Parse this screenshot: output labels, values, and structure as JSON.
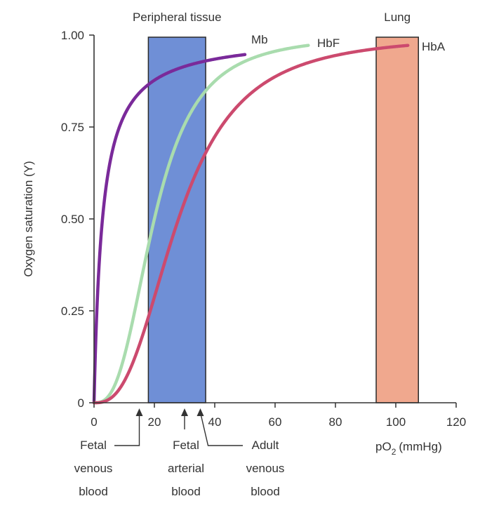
{
  "chart_data": {
    "type": "line",
    "title": "",
    "xlabel": "pO2 (mmHg)",
    "xlabel_main": "pO",
    "xlabel_sub": "2",
    "xlabel_units": "(mmHg)",
    "ylabel": "Oxygen saturation (Y)",
    "xlim": [
      0,
      120
    ],
    "ylim": [
      0,
      1.0
    ],
    "x_ticks": [
      0,
      20,
      40,
      60,
      80,
      100,
      120
    ],
    "x_tick_labels": [
      "0",
      "20",
      "40",
      "60",
      "80",
      "100",
      "120"
    ],
    "y_ticks": [
      0,
      0.25,
      0.5,
      0.75,
      1.0
    ],
    "y_tick_labels": [
      "0",
      "0.25",
      "0.50",
      "0.75",
      "1.00"
    ],
    "grid": false,
    "regions": [
      {
        "label": "Peripheral tissue",
        "x_range": [
          18,
          37
        ],
        "color": "#6f8fd6"
      },
      {
        "label": "Lung",
        "x_range": [
          93.5,
          107.5
        ],
        "color": "#f0a88e"
      }
    ],
    "series": [
      {
        "name": "Mb",
        "color": "#7a2a9a",
        "p50": 2.8,
        "n": 1.0,
        "x_end": 50,
        "x": [
          0,
          2,
          4,
          6,
          10,
          15,
          20,
          30,
          40,
          50
        ],
        "values": [
          0.0,
          0.42,
          0.59,
          0.68,
          0.78,
          0.84,
          0.88,
          0.91,
          0.94,
          0.95
        ]
      },
      {
        "name": "HbF",
        "color": "#a9dcae",
        "p50": 20,
        "n": 2.8,
        "x_end": 71,
        "x": [
          0,
          10,
          15,
          20,
          25,
          30,
          35,
          40,
          50,
          60,
          71
        ],
        "values": [
          0.0,
          0.13,
          0.31,
          0.5,
          0.65,
          0.76,
          0.83,
          0.87,
          0.93,
          0.95,
          0.97
        ]
      },
      {
        "name": "HbA",
        "color": "#cc4a6e",
        "p50": 28,
        "n": 2.7,
        "x_end": 104,
        "x": [
          0,
          10,
          20,
          25,
          30,
          35,
          40,
          50,
          60,
          80,
          104
        ],
        "values": [
          0.0,
          0.06,
          0.29,
          0.42,
          0.55,
          0.67,
          0.76,
          0.85,
          0.9,
          0.95,
          0.97
        ]
      }
    ],
    "annotations": [
      {
        "lines": [
          "Fetal",
          "venous",
          "blood"
        ],
        "x": 15
      },
      {
        "lines": [
          "Fetal",
          "arterial",
          "blood"
        ],
        "x": 30
      },
      {
        "lines": [
          "Adult",
          "venous",
          "blood"
        ],
        "x": 35
      }
    ]
  },
  "colors": {
    "axis": "#333333",
    "text": "#333333",
    "region_border": "#2a2a2a"
  }
}
